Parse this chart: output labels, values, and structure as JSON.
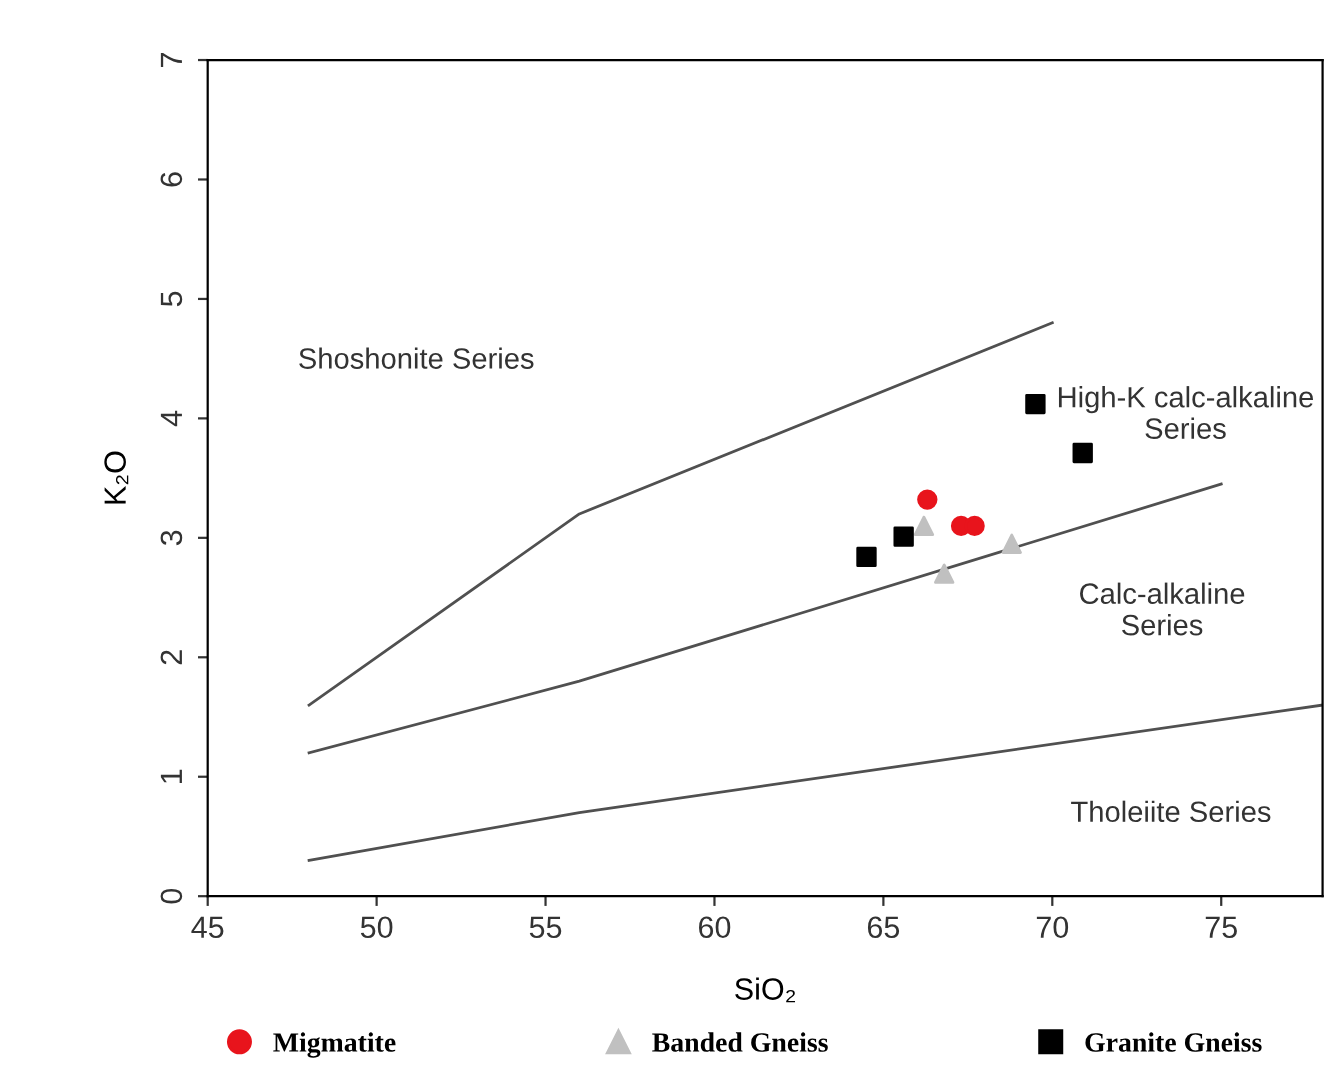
{
  "chart_data": {
    "type": "scatter",
    "xlabel": "SiO₂",
    "ylabel": "K₂O",
    "xlim": [
      45,
      78
    ],
    "ylim": [
      0,
      7
    ],
    "xticks": [
      45,
      50,
      55,
      60,
      65,
      70,
      75
    ],
    "yticks": [
      0,
      1,
      2,
      3,
      4,
      5,
      6,
      7
    ],
    "grid": false,
    "legend": "bottom",
    "series": [
      {
        "type": "line",
        "color": "#505050",
        "marker": "none",
        "x": [
          48,
          56,
          70
        ],
        "values": [
          1.6,
          3.2,
          4.8
        ]
      },
      {
        "type": "line",
        "color": "#505050",
        "marker": "none",
        "x": [
          48,
          56,
          75
        ],
        "values": [
          1.2,
          1.8,
          3.45
        ]
      },
      {
        "type": "line",
        "color": "#505050",
        "marker": "none",
        "x": [
          48,
          56,
          78
        ],
        "values": [
          0.3,
          0.7,
          1.6
        ]
      },
      {
        "name": "Migmatite",
        "color": "#e8141c",
        "marker": "circle",
        "x": [
          66.3,
          67.3,
          67.7
        ],
        "values": [
          3.32,
          3.1,
          3.1
        ]
      },
      {
        "name": "Banded Gneiss",
        "color": "#c0c0c0",
        "marker": "triangle",
        "x": [
          66.2,
          68.8,
          66.8
        ],
        "values": [
          3.1,
          2.95,
          2.7
        ]
      },
      {
        "name": "Granite Gneiss",
        "color": "#000000",
        "marker": "square",
        "x": [
          69.5,
          70.9,
          65.6,
          64.5
        ],
        "values": [
          4.12,
          3.71,
          3.01,
          2.84
        ]
      }
    ],
    "annotations": [
      "Shoshonite Series",
      "High-K calc-alkaline\nSeries",
      "Calc-alkaline\nSeries",
      "Tholeiite Series"
    ]
  }
}
